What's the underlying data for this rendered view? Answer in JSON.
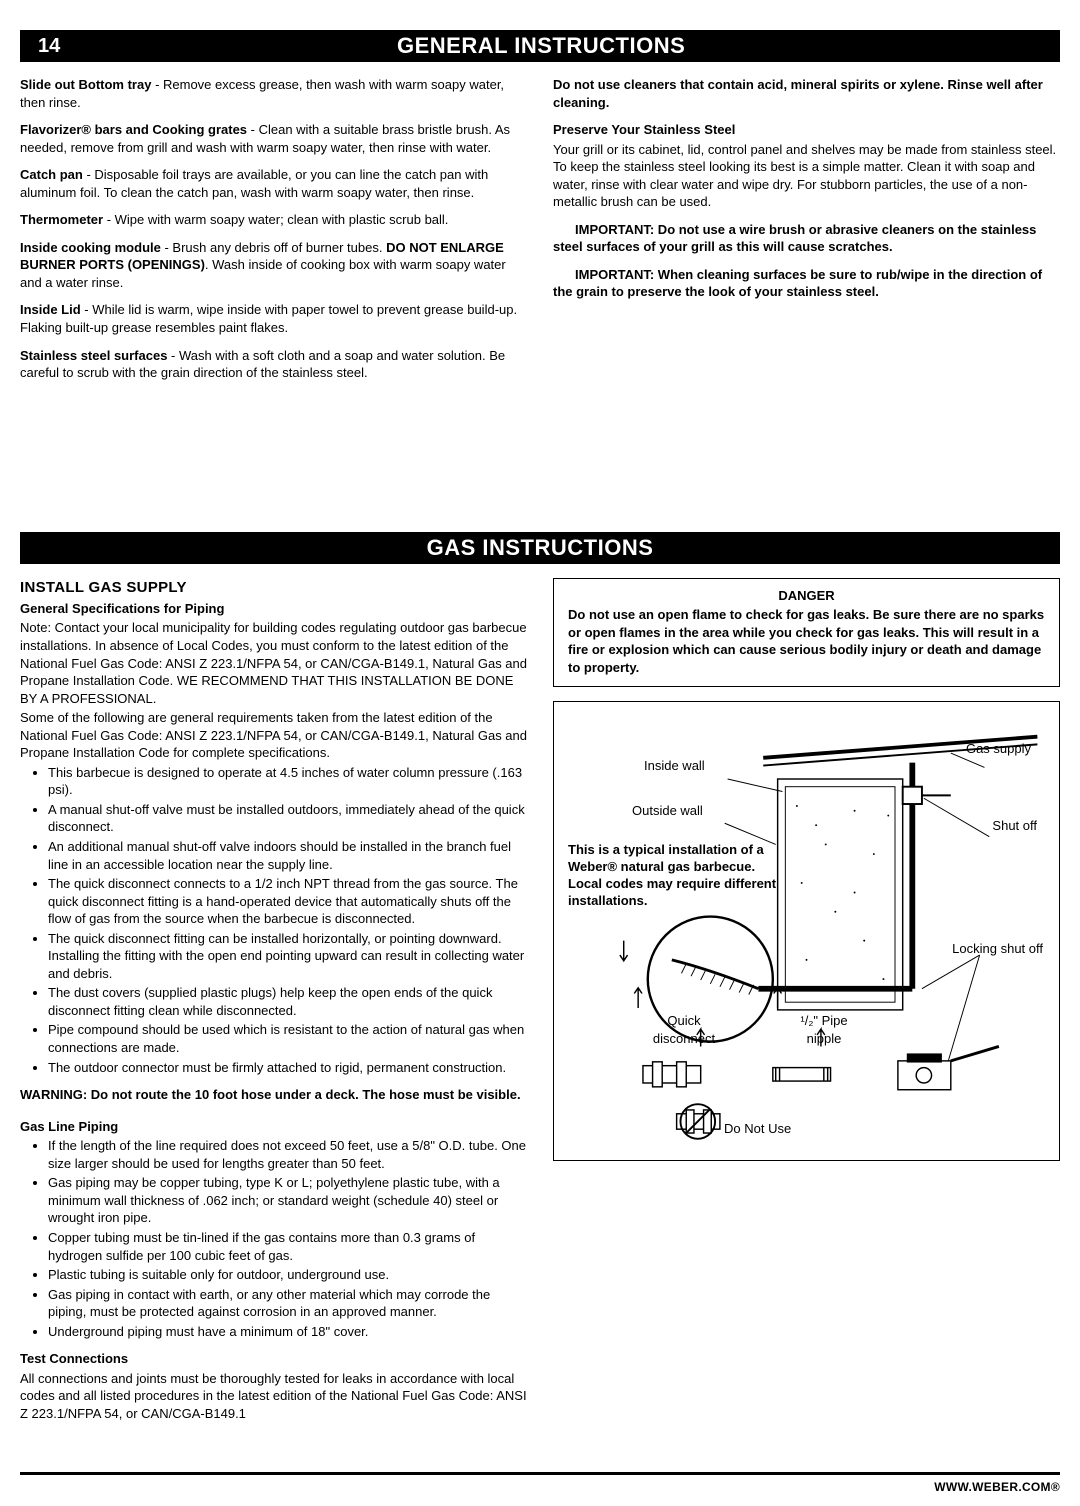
{
  "page_number": "14",
  "header1": "GENERAL INSTRUCTIONS",
  "header2": "GAS INSTRUCTIONS",
  "left_col": {
    "p1_b": "Slide out Bottom tray",
    "p1": " - Remove excess grease, then wash with warm soapy water, then rinse.",
    "p2_b": "Flavorizer® bars and Cooking grates",
    "p2": " - Clean with a suitable brass bristle brush. As needed, remove from grill and wash with warm soapy water, then rinse with water.",
    "p3_b": "Catch pan",
    "p3": " - Disposable foil trays are available, or you can line the catch pan with aluminum foil. To clean the catch pan, wash with warm soapy water, then rinse.",
    "p4_b": "Thermometer",
    "p4": " - Wipe with warm soapy water; clean with plastic scrub ball.",
    "p5_b": "Inside cooking module",
    "p5_mid": " - Brush any debris off of burner tubes. ",
    "p5_b2": "DO NOT ENLARGE BURNER PORTS (OPENINGS)",
    "p5_end": ". Wash inside of cooking box with warm soapy water and a water rinse.",
    "p6_b": "Inside Lid",
    "p6": " - While lid is warm, wipe inside with paper towel to prevent grease build-up. Flaking built-up grease resembles paint flakes.",
    "p7_b": "Stainless steel surfaces",
    "p7": " - Wash with a soft cloth and a soap and water solution. Be careful to scrub with the grain direction of the stainless steel."
  },
  "right_col": {
    "p1": "Do not use cleaners that contain acid, mineral spirits or xylene. Rinse well after cleaning.",
    "preserve_head": "Preserve Your Stainless Steel",
    "preserve_body": "Your grill or its cabinet, lid, control panel and shelves may be made from stainless steel. To keep the stainless steel looking its best is a simple matter. Clean it with soap and water, rinse with clear water and wipe dry. For stubborn particles, the use of a non-metallic brush can be used.",
    "imp1": "IMPORTANT: Do not use a wire brush or abrasive cleaners on the stainless steel surfaces of your grill as this will cause scratches.",
    "imp2": "IMPORTANT: When cleaning surfaces be sure to rub/wipe in the direction of the grain to preserve the look of your stainless steel."
  },
  "gas_left": {
    "install_head": "INSTALL GAS SUPPLY",
    "spec_head": "General Specifications for Piping",
    "spec_body": "Note: Contact your local municipality for building codes regulating outdoor gas barbecue installations. In absence of Local Codes, you must conform to the latest edition of the    National Fuel Gas Code: ANSI Z 223.1/NFPA 54, or CAN/CGA-B149.1, Natural Gas and Propane Installation Code. WE RECOMMEND THAT THIS INSTALLATION BE DONE BY A PROFESSIONAL.",
    "spec_body2": "Some of the following are general requirements taken from the latest edition of the National Fuel Gas Code: ANSI Z 223.1/NFPA 54, or CAN/CGA-B149.1, Natural Gas and Propane Installation Code for complete specifications.",
    "bullets1": [
      "This barbecue is designed to operate at 4.5 inches of water column pressure (.163 psi).",
      "A manual shut-off valve must be installed outdoors, immediately ahead of the quick disconnect.",
      "An additional manual shut-off valve indoors should be installed in the branch fuel line in an accessible location near the supply line.",
      "The quick disconnect connects to a 1/2 inch NPT thread from the gas source. The quick disconnect fitting is a hand-operated device that automatically shuts off the flow of gas from the source when the barbecue is disconnected.",
      "The quick disconnect fitting can be installed horizontally, or pointing downward. Installing the fitting with the open end pointing upward can result in collecting water and debris.",
      "The dust covers (supplied plastic plugs) help keep the open ends of the quick disconnect fitting clean while disconnected.",
      "Pipe compound should be used which is resistant to the action of natural gas when connections are made.",
      "The outdoor connector must be firmly attached to rigid, permanent construction."
    ],
    "warning": "WARNING: Do not route the 10 foot hose under a deck. The hose must be visible.",
    "piping_head": "Gas Line Piping",
    "bullets2": [
      "If the length of the line required does not exceed 50 feet, use a 5/8\" O.D. tube. One size larger should be used for lengths greater than 50 feet.",
      "Gas piping may be copper tubing, type K or L; polyethylene plastic tube, with a minimum wall thickness of .062 inch; or standard weight (schedule 40) steel or wrought iron pipe.",
      "Copper tubing must be tin-lined if the gas contains more than 0.3 grams of hydrogen sulfide per 100 cubic feet of gas.",
      "Plastic tubing is suitable only for outdoor, underground use.",
      "Gas piping in contact with earth, or any other material which may corrode the piping, must be protected against corrosion in an approved manner.",
      "Underground piping must have a minimum of 18\" cover."
    ],
    "test_head": "Test Connections",
    "test_body": "All connections and joints must be thoroughly tested for leaks in accordance with local codes and all listed procedures in the latest edition of the National Fuel Gas Code: ANSI Z 223.1/NFPA 54, or CAN/CGA-B149.1"
  },
  "gas_right": {
    "danger_title": "DANGER",
    "danger_body": "Do not use an open flame to check for gas leaks. Be sure there are no sparks or open flames in the area while you check for gas leaks. This will result in a fire or explosion which can cause serious bodily injury or death and damage to property.",
    "diagram": {
      "gas_supply": "Gas supply",
      "inside_wall": "Inside wall",
      "outside_wall": "Outside wall",
      "shut_off": "Shut off",
      "locking_shut_off": "Locking shut off",
      "quick_disconnect": "Quick disconnect",
      "pipe_nipple": "¹/₂\" Pipe nipple",
      "do_not_use": "Do Not Use",
      "note": "This is a typical installation of a Weber® natural gas barbecue. Local codes may require different installations."
    }
  },
  "footer": "WWW.WEBER.COM®"
}
